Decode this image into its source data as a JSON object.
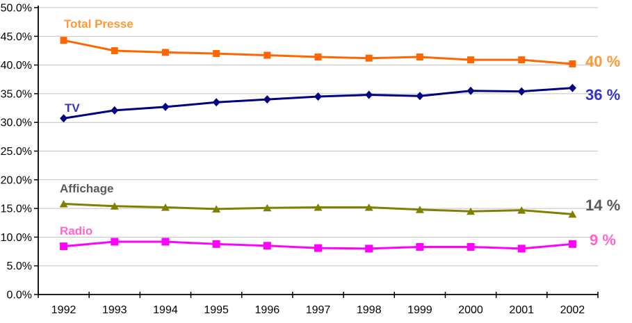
{
  "chart_data": {
    "type": "line",
    "categories": [
      "1992",
      "1993",
      "1994",
      "1995",
      "1996",
      "1997",
      "1998",
      "1999",
      "2000",
      "2001",
      "2002"
    ],
    "series": [
      {
        "name": "Total Presse",
        "values": [
          44.3,
          42.5,
          42.2,
          42.0,
          41.7,
          41.4,
          41.2,
          41.4,
          40.9,
          40.9,
          40.2
        ],
        "color": "#FF6600",
        "marker": "square",
        "name_color": "#FF9933",
        "end_label": "40 %",
        "end_label_color": "#FF9933"
      },
      {
        "name": "TV",
        "values": [
          30.7,
          32.1,
          32.7,
          33.5,
          34.0,
          34.5,
          34.8,
          34.6,
          35.5,
          35.4,
          36.0
        ],
        "color": "#000080",
        "marker": "diamond",
        "name_color": "#3333CC",
        "end_label": "36 %",
        "end_label_color": "#3333CC"
      },
      {
        "name": "Affichage",
        "values": [
          15.8,
          15.4,
          15.2,
          14.9,
          15.1,
          15.2,
          15.2,
          14.8,
          14.5,
          14.7,
          14.0
        ],
        "color": "#808000",
        "marker": "triangle",
        "name_color": "#595959",
        "end_label": "14 %",
        "end_label_color": "#595959"
      },
      {
        "name": "Radio",
        "values": [
          8.4,
          9.2,
          9.2,
          8.8,
          8.5,
          8.1,
          8.0,
          8.3,
          8.3,
          8.0,
          8.8
        ],
        "color": "#FF00FF",
        "marker": "square",
        "name_color": "#FF66CC",
        "end_label": "9 %",
        "end_label_color": "#FF66CC"
      }
    ],
    "ylim": [
      0,
      50
    ],
    "ytick_step": 5,
    "ytick_labels": [
      "0.0%",
      "5.0%",
      "10.0%",
      "15.0%",
      "20.0%",
      "25.0%",
      "30.0%",
      "35.0%",
      "40.0%",
      "45.0%",
      "50.0%"
    ],
    "xlabel": "",
    "ylabel": "",
    "grid": "horizontal",
    "legend_position": "inline-series-labels",
    "colors": {
      "gridline": "#C0C0C0",
      "axis": "#000000",
      "tick_label": "#000000",
      "background": "#FFFFFF"
    }
  }
}
